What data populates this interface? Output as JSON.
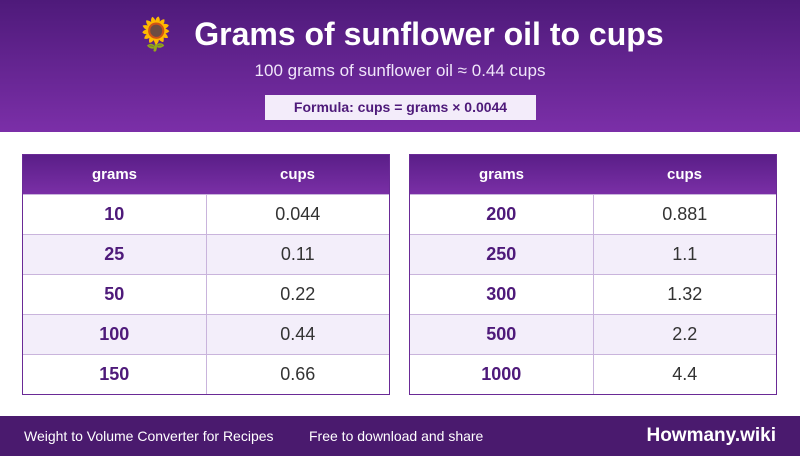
{
  "header": {
    "icon": "🌻",
    "title": "Grams of sunflower oil to cups",
    "subtitle": "100 grams of sunflower oil ≈ 0.44 cups",
    "formula": "Formula: cups = grams × 0.0044"
  },
  "tables": [
    {
      "columns": [
        "grams",
        "cups"
      ],
      "rows": [
        [
          "10",
          "0.044"
        ],
        [
          "25",
          "0.11"
        ],
        [
          "50",
          "0.22"
        ],
        [
          "100",
          "0.44"
        ],
        [
          "150",
          "0.66"
        ]
      ]
    },
    {
      "columns": [
        "grams",
        "cups"
      ],
      "rows": [
        [
          "200",
          "0.881"
        ],
        [
          "250",
          "1.1"
        ],
        [
          "300",
          "1.32"
        ],
        [
          "500",
          "2.2"
        ],
        [
          "1000",
          "4.4"
        ]
      ]
    }
  ],
  "footer": {
    "left": "Weight to Volume Converter for Recipes",
    "middle": "Free to download and share",
    "brand": "Howmany.wiki"
  }
}
